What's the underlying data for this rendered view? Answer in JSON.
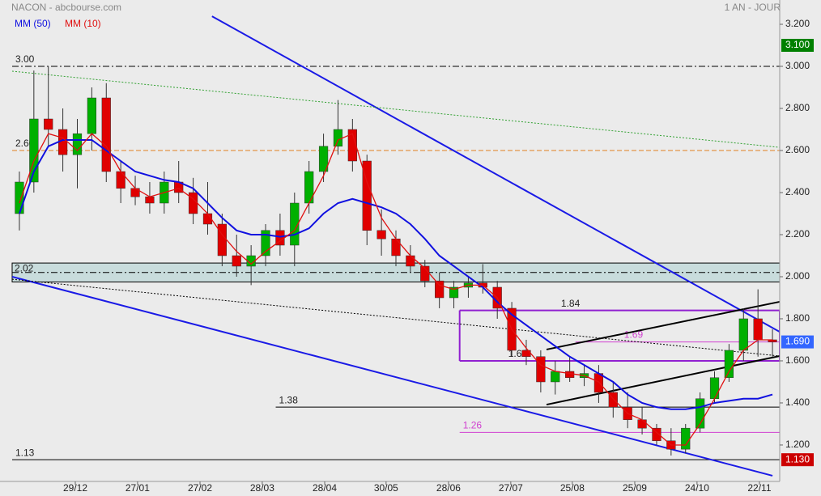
{
  "chart_data": {
    "type": "candlestick",
    "title": "NACON - abcbourse.com",
    "subtitle": "1 AN - JOUR",
    "x": [
      0.5,
      1.5,
      2.5,
      3.5,
      4.5,
      5.5,
      6.5,
      7.5,
      8.5,
      9.5,
      10.5,
      11.5,
      12.5,
      13.5,
      14.5,
      15.5,
      16.5,
      17.5,
      18.5,
      19.5,
      20.5,
      21.5,
      22.5,
      23.5,
      24.5,
      25.5,
      26.5,
      27.5,
      28.5,
      29.5,
      30.5,
      31.5,
      32.5,
      33.5,
      34.5,
      35.5,
      36.5,
      37.5,
      38.5,
      39.5,
      40.5,
      41.5,
      42.5,
      43.5,
      44.5,
      45.5,
      46.5,
      47.5,
      48.5,
      49.5,
      50.5,
      51.5,
      52.5
    ],
    "candles": {
      "up_color": "#00b000",
      "down_color": "#e00000",
      "open": [
        2.3,
        2.45,
        2.75,
        2.7,
        2.58,
        2.68,
        2.85,
        2.5,
        2.42,
        2.38,
        2.35,
        2.45,
        2.4,
        2.3,
        2.25,
        2.1,
        2.05,
        2.1,
        2.22,
        2.15,
        2.35,
        2.5,
        2.62,
        2.7,
        2.55,
        2.22,
        2.18,
        2.1,
        2.05,
        1.98,
        1.9,
        1.95,
        1.97,
        1.95,
        1.85,
        1.65,
        1.62,
        1.5,
        1.55,
        1.52,
        1.54,
        1.45,
        1.38,
        1.32,
        1.28,
        1.22,
        1.18,
        1.28,
        1.42,
        1.52,
        1.65,
        1.8,
        1.7
      ],
      "high": [
        2.5,
        2.98,
        3.0,
        2.8,
        2.75,
        2.9,
        2.92,
        2.55,
        2.48,
        2.45,
        2.5,
        2.55,
        2.47,
        2.45,
        2.3,
        2.2,
        2.15,
        2.25,
        2.3,
        2.4,
        2.55,
        2.68,
        2.84,
        2.75,
        2.58,
        2.32,
        2.22,
        2.15,
        2.08,
        2.02,
        1.98,
        2.0,
        2.06,
        1.98,
        1.88,
        1.7,
        1.65,
        1.6,
        1.62,
        1.58,
        1.58,
        1.5,
        1.45,
        1.38,
        1.3,
        1.28,
        1.3,
        1.45,
        1.55,
        1.68,
        1.85,
        1.94,
        1.75
      ],
      "low": [
        2.22,
        2.4,
        2.62,
        2.5,
        2.42,
        2.6,
        2.45,
        2.35,
        2.34,
        2.3,
        2.3,
        2.35,
        2.25,
        2.2,
        2.05,
        2.0,
        1.96,
        2.05,
        2.1,
        2.05,
        2.3,
        2.45,
        2.58,
        2.5,
        2.15,
        2.1,
        2.05,
        2.02,
        1.95,
        1.85,
        1.85,
        1.9,
        1.92,
        1.8,
        1.62,
        1.58,
        1.45,
        1.44,
        1.5,
        1.48,
        1.4,
        1.33,
        1.28,
        1.25,
        1.2,
        1.15,
        1.16,
        1.26,
        1.4,
        1.5,
        1.6,
        1.62,
        1.62
      ],
      "close": [
        2.45,
        2.75,
        2.7,
        2.58,
        2.68,
        2.85,
        2.5,
        2.42,
        2.38,
        2.35,
        2.45,
        2.4,
        2.3,
        2.25,
        2.1,
        2.05,
        2.1,
        2.22,
        2.15,
        2.35,
        2.5,
        2.62,
        2.7,
        2.55,
        2.22,
        2.18,
        2.1,
        2.05,
        1.98,
        1.9,
        1.95,
        1.97,
        1.95,
        1.85,
        1.65,
        1.62,
        1.5,
        1.55,
        1.52,
        1.54,
        1.45,
        1.38,
        1.32,
        1.28,
        1.22,
        1.18,
        1.28,
        1.42,
        1.52,
        1.65,
        1.8,
        1.7,
        1.69
      ]
    },
    "series": [
      {
        "name": "MM (50)",
        "color": "#1010e0",
        "values": [
          2.3,
          2.5,
          2.62,
          2.65,
          2.65,
          2.65,
          2.6,
          2.55,
          2.5,
          2.48,
          2.46,
          2.45,
          2.42,
          2.35,
          2.28,
          2.22,
          2.2,
          2.2,
          2.19,
          2.2,
          2.23,
          2.3,
          2.35,
          2.37,
          2.35,
          2.33,
          2.3,
          2.25,
          2.18,
          2.1,
          2.05,
          2.0,
          1.95,
          1.88,
          1.82,
          1.77,
          1.72,
          1.67,
          1.62,
          1.58,
          1.54,
          1.5,
          1.44,
          1.4,
          1.38,
          1.37,
          1.37,
          1.38,
          1.4,
          1.41,
          1.42,
          1.42,
          1.44
        ]
      },
      {
        "name": "MM (10)",
        "color": "#e01010",
        "values": [
          2.35,
          2.55,
          2.68,
          2.66,
          2.6,
          2.68,
          2.62,
          2.5,
          2.42,
          2.38,
          2.4,
          2.42,
          2.37,
          2.3,
          2.2,
          2.12,
          2.06,
          2.12,
          2.17,
          2.22,
          2.35,
          2.48,
          2.65,
          2.68,
          2.45,
          2.28,
          2.18,
          2.1,
          2.04,
          1.96,
          1.94,
          1.96,
          1.96,
          1.9,
          1.75,
          1.66,
          1.58,
          1.55,
          1.54,
          1.53,
          1.5,
          1.42,
          1.35,
          1.32,
          1.26,
          1.2,
          1.2,
          1.3,
          1.42,
          1.55,
          1.65,
          1.7,
          1.7
        ]
      }
    ],
    "xlim": [
      0,
      53
    ],
    "ylim": [
      1.046,
      3.277
    ],
    "yticks": [
      {
        "value": 3.2,
        "label": "3.200"
      },
      {
        "value": 3.0,
        "label": "3.000"
      },
      {
        "value": 2.8,
        "label": "2.800"
      },
      {
        "value": 2.6,
        "label": "2.600"
      },
      {
        "value": 2.4,
        "label": "2.400"
      },
      {
        "value": 2.2,
        "label": "2.200"
      },
      {
        "value": 2.0,
        "label": "2.000"
      },
      {
        "value": 1.8,
        "label": "1.800"
      },
      {
        "value": 1.6,
        "label": "1.600"
      },
      {
        "value": 1.4,
        "label": "1.400"
      },
      {
        "value": 1.2,
        "label": "1.200"
      }
    ],
    "xticks": [
      {
        "value": 4.36,
        "label": "29/12"
      },
      {
        "value": 8.66,
        "label": "27/01"
      },
      {
        "value": 12.97,
        "label": "27/02"
      },
      {
        "value": 17.27,
        "label": "28/03"
      },
      {
        "value": 21.58,
        "label": "28/04"
      },
      {
        "value": 25.82,
        "label": "30/05"
      },
      {
        "value": 30.13,
        "label": "28/06"
      },
      {
        "value": 34.43,
        "label": "27/07"
      },
      {
        "value": 38.68,
        "label": "25/08"
      },
      {
        "value": 42.99,
        "label": "25/09"
      },
      {
        "value": 47.29,
        "label": "24/10"
      },
      {
        "value": 51.6,
        "label": "22/11"
      }
    ],
    "badges": [
      {
        "value": 3.1,
        "label": "3.100",
        "color": "#008000"
      },
      {
        "value": 1.69,
        "label": "1.690",
        "color": "#3366ff"
      },
      {
        "value": 1.13,
        "label": "1.130",
        "color": "#cc0000"
      }
    ],
    "zone": {
      "value": 2.02,
      "top": 2.065,
      "bottom": 1.975,
      "color": "#c8dcdc"
    },
    "levels": [
      {
        "value": 3.0,
        "label": "3.00",
        "x_start": 0,
        "color": "#000000",
        "dash": "8 3 2 3"
      },
      {
        "value": 2.6,
        "label": "2.60",
        "x_start": 0,
        "color": "#e08020",
        "dash": "6 3"
      },
      {
        "value": 1.84,
        "x_start": 30.9,
        "color": "#9020d0",
        "dash": ""
      },
      {
        "value": 1.69,
        "x_start": 38.9,
        "color": "#d040d0",
        "dash": ""
      },
      {
        "value": 1.6,
        "label": "1.60",
        "x_start": 30.9,
        "color": "#9020d0",
        "dash": ""
      },
      {
        "value": 1.38,
        "x_start": 18.2,
        "color": "#000000",
        "dash": ""
      },
      {
        "value": 1.26,
        "x_start": 30.9,
        "color": "#d040d0",
        "dash": ""
      },
      {
        "value": 1.13,
        "label": "1.13",
        "x_start": 0,
        "color": "#000000",
        "dash": ""
      }
    ],
    "trendlines": [
      {
        "x": [
          13.8,
          53
        ],
        "y": [
          3.238,
          1.738
        ],
        "color": "#1a1ae6",
        "width": 2,
        "dash": ""
      },
      {
        "x": [
          0,
          52.5
        ],
        "y": [
          2.0,
          1.054
        ],
        "color": "#1a1ae6",
        "width": 2,
        "dash": ""
      },
      {
        "x": [
          0,
          53
        ],
        "y": [
          2.977,
          2.615
        ],
        "color": "#30a030",
        "width": 1,
        "dash": "2 2"
      },
      {
        "x": [
          0,
          53
        ],
        "y": [
          1.988,
          1.623
        ],
        "color": "#000000",
        "width": 1,
        "dash": "2 2"
      },
      {
        "x": [
          36.9,
          53
        ],
        "y": [
          1.654,
          1.881
        ],
        "color": "#000000",
        "width": 2,
        "dash": ""
      },
      {
        "x": [
          36.9,
          53
        ],
        "y": [
          1.392,
          1.623
        ],
        "color": "#000000",
        "width": 2,
        "dash": ""
      }
    ]
  }
}
